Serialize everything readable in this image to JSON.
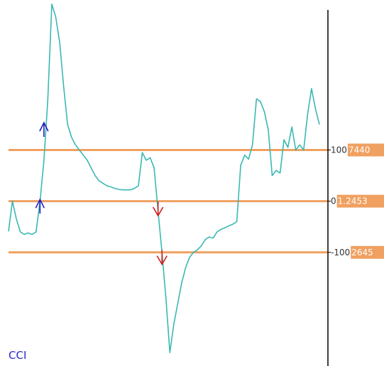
{
  "indicator_label": "CCI",
  "colors": {
    "line": "#3ab8b2",
    "level_line": "#f0a060",
    "tag_bg": "#f0a060",
    "up_arrow": "#2020c0",
    "down_arrow": "#d02020",
    "axis": "#000000",
    "label": "#2b2bd0"
  },
  "chart_data": {
    "type": "line",
    "ylim": [
      -322,
      393
    ],
    "levels": [
      {
        "value": 100,
        "tick_label": "100",
        "tag": "7440"
      },
      {
        "value": 0,
        "tick_label": "0",
        "tag": "1.2453"
      },
      {
        "value": -100,
        "tick_label": "-100",
        "tag": "2645"
      }
    ],
    "series": [
      {
        "values": [
          -59,
          0,
          -35,
          -60,
          -65,
          -62,
          -65,
          -60,
          0,
          80,
          200,
          385,
          360,
          310,
          225,
          150,
          125,
          110,
          100,
          90,
          80,
          65,
          50,
          40,
          35,
          30,
          28,
          25,
          23,
          22,
          22,
          22,
          25,
          30,
          95,
          80,
          85,
          65,
          -20,
          -100,
          -190,
          -296,
          -240,
          -200,
          -160,
          -130,
          -110,
          -100,
          -95,
          -87,
          -75,
          -70,
          -72,
          -60,
          -55,
          -52,
          -48,
          -45,
          -40,
          70,
          90,
          82,
          110,
          200,
          195,
          175,
          140,
          50,
          60,
          55,
          120,
          105,
          145,
          100,
          110,
          100,
          170,
          220,
          180,
          150
        ]
      }
    ],
    "up_arrows": [
      {
        "index": 8,
        "value": -5
      },
      {
        "index": 9,
        "value": 145
      }
    ],
    "down_arrows": [
      {
        "index": 38,
        "value": -20
      },
      {
        "index": 39,
        "value": -115
      }
    ]
  }
}
